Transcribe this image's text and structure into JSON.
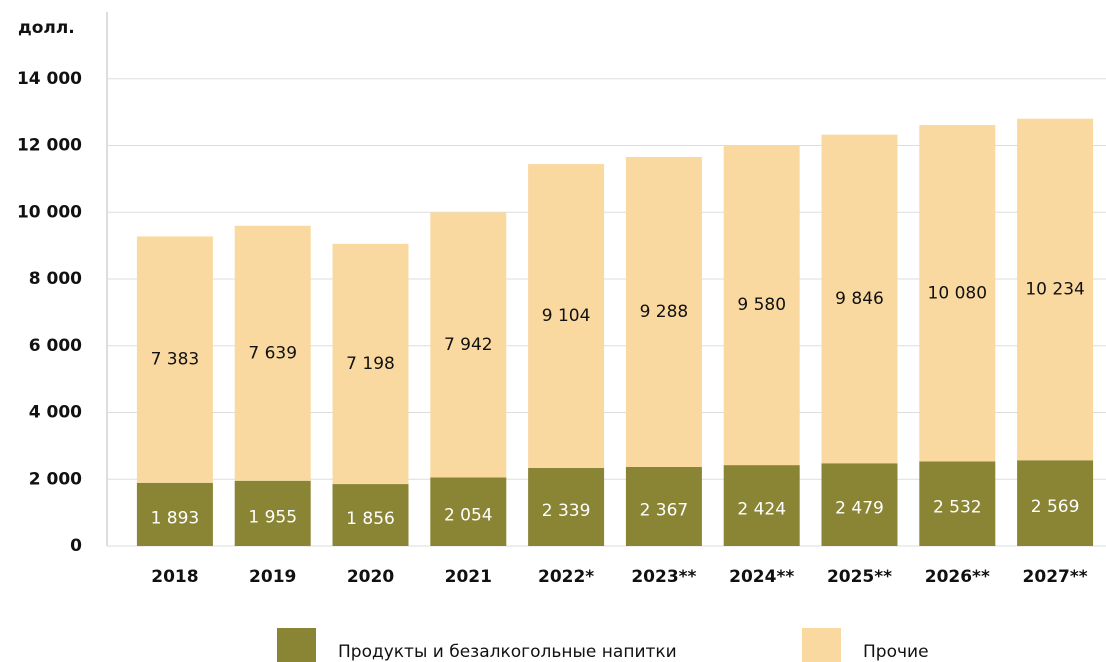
{
  "chart_data": {
    "type": "stacked_bar",
    "y_unit_label": "долл.",
    "categories": [
      "2018",
      "2019",
      "2020",
      "2021",
      "2022*",
      "2023**",
      "2024**",
      "2025**",
      "2026**",
      "2027**"
    ],
    "series": [
      {
        "name": "Продукты и безалкогольные напитки",
        "color": "#8a8535",
        "values": [
          1893,
          1955,
          1856,
          2054,
          2339,
          2367,
          2424,
          2479,
          2532,
          2569
        ],
        "value_labels": [
          "1 893",
          "1 955",
          "1 856",
          "2 054",
          "2 339",
          "2 367",
          "2 424",
          "2 479",
          "2 532",
          "2 569"
        ]
      },
      {
        "name": "Прочие",
        "color": "#fad9a1",
        "values": [
          7383,
          7639,
          7198,
          7942,
          9104,
          9288,
          9580,
          9846,
          10080,
          10234
        ],
        "value_labels": [
          "7 383",
          "7 639",
          "7 198",
          "7 942",
          "9 104",
          "9 288",
          "9 580",
          "9 846",
          "10 080",
          "10 234"
        ]
      }
    ],
    "ylim": [
      0,
      16000
    ],
    "yticks": [
      0,
      {
        "value": 2000,
        "label": "2 000"
      },
      {
        "value": 4000,
        "label": "4 000"
      },
      {
        "value": 6000,
        "label": "6 000"
      },
      {
        "value": 8000,
        "label": "8 000"
      },
      {
        "value": 10000,
        "label": "10 000"
      },
      {
        "value": 12000,
        "label": "12 000"
      },
      {
        "value": 14000,
        "label": "14 000"
      }
    ],
    "grid": true
  }
}
